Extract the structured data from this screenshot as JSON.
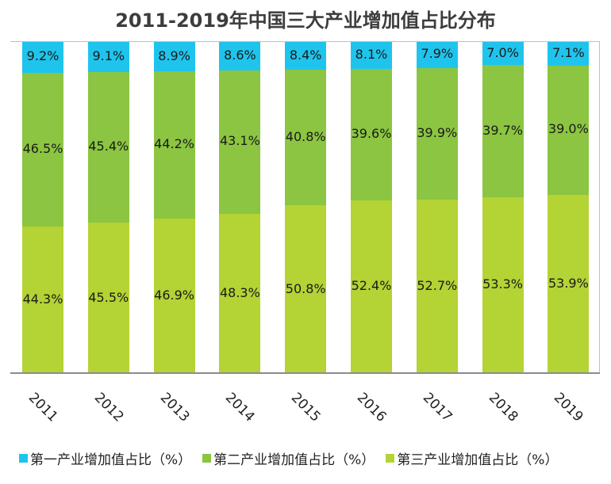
{
  "chart_data": {
    "type": "bar",
    "stacked": true,
    "normalized": true,
    "title": "2011-2019年中国三大产业增加值占比分布",
    "xlabel": "",
    "ylabel": "",
    "ylim": [
      0,
      100
    ],
    "grid": false,
    "legend_position": "bottom",
    "categories": [
      "2011",
      "2012",
      "2013",
      "2014",
      "2015",
      "2016",
      "2017",
      "2018",
      "2019"
    ],
    "series": [
      {
        "name": "第一产业增加值占比（%）",
        "color": "#1fc4ec",
        "values": [
          9.2,
          9.1,
          8.9,
          8.6,
          8.4,
          8.1,
          7.9,
          7.0,
          7.1
        ]
      },
      {
        "name": "第二产业增加值占比（%）",
        "color": "#8bc541",
        "values": [
          46.5,
          45.4,
          44.2,
          43.1,
          40.8,
          39.6,
          39.9,
          39.7,
          39.0
        ]
      },
      {
        "name": "第三产业增加值占比（%）",
        "color": "#b4d334",
        "values": [
          44.3,
          45.5,
          46.9,
          48.3,
          50.8,
          52.4,
          52.7,
          53.3,
          53.9
        ]
      }
    ]
  }
}
